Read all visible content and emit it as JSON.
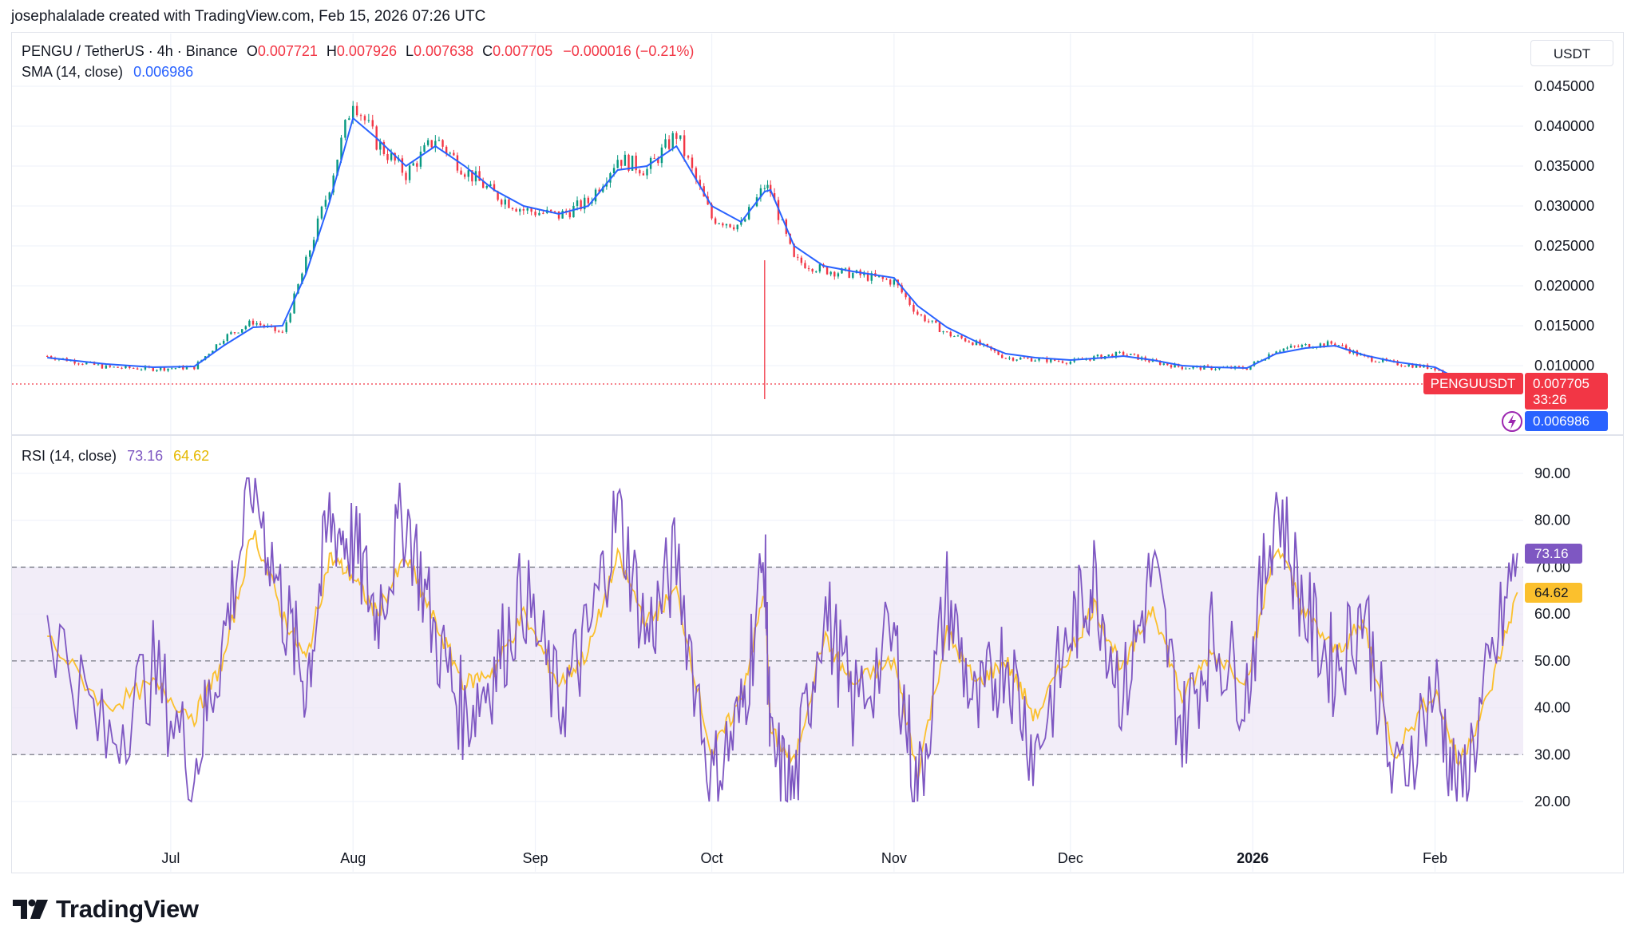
{
  "credit": "josephalalade created with TradingView.com, Feb 15, 2026 07:26 UTC",
  "legend": {
    "symbol": "PENGU / TetherUS · 4h · Binance",
    "o_label": "O",
    "o": "0.007721",
    "h_label": "H",
    "h": "0.007926",
    "l_label": "L",
    "l": "0.007638",
    "c_label": "C",
    "c": "0.007705",
    "change": "−0.000016 (−0.21%)",
    "sma_label": "SMA (14, close)",
    "sma_value": "0.006986",
    "rsi_label": "RSI (14, close)",
    "rsi_value": "73.16",
    "rsi_ma_value": "64.62"
  },
  "currency": "USDT",
  "price_axis_ticks": [
    "0.045000",
    "0.040000",
    "0.035000",
    "0.030000",
    "0.025000",
    "0.020000",
    "0.015000",
    "0.010000"
  ],
  "rsi_axis_ticks": [
    "90.00",
    "80.00",
    "70.00",
    "60.00",
    "50.00",
    "40.00",
    "30.00",
    "20.00"
  ],
  "time_axis_ticks": [
    "Jul",
    "Aug",
    "Sep",
    "Oct",
    "Nov",
    "Dec",
    "2026",
    "Feb"
  ],
  "price_badge": {
    "symbol": "PENGUUSDT",
    "price": "0.007705",
    "countdown": "33:26"
  },
  "sma_badge": "0.006986",
  "rsi_badge": "73.16",
  "rsi_ma_badge": "64.62",
  "brand": "TradingView",
  "colors": {
    "up": "#089981",
    "down": "#f23645",
    "sma": "#2962ff",
    "rsi": "#7e57c2",
    "rsi_ma": "#fbc02d",
    "rsi_band": "#ede7f6"
  },
  "chart_data": [
    {
      "type": "candlestick",
      "title": "PENGU / TetherUS · 4h · Binance",
      "ylim": [
        0.0055,
        0.0475
      ],
      "x": [
        "2025-06-10",
        "2025-06-20",
        "2025-06-28",
        "2025-07-05",
        "2025-07-10",
        "2025-07-15",
        "2025-07-20",
        "2025-07-24",
        "2025-07-28",
        "2025-08-01",
        "2025-08-05",
        "2025-08-10",
        "2025-08-15",
        "2025-08-20",
        "2025-08-25",
        "2025-08-30",
        "2025-09-05",
        "2025-09-10",
        "2025-09-15",
        "2025-09-20",
        "2025-09-25",
        "2025-10-01",
        "2025-10-06",
        "2025-10-10",
        "2025-10-11",
        "2025-10-15",
        "2025-10-20",
        "2025-10-25",
        "2025-11-01",
        "2025-11-05",
        "2025-11-10",
        "2025-11-15",
        "2025-11-20",
        "2025-11-25",
        "2025-12-01",
        "2025-12-05",
        "2025-12-10",
        "2025-12-15",
        "2025-12-20",
        "2025-12-25",
        "2025-12-31",
        "2026-01-05",
        "2026-01-10",
        "2026-01-15",
        "2026-01-20",
        "2026-01-25",
        "2026-02-01",
        "2026-02-05",
        "2026-02-10",
        "2026-02-15"
      ],
      "series": [
        {
          "name": "close",
          "values": [
            0.0112,
            0.0098,
            0.0096,
            0.0098,
            0.0135,
            0.0155,
            0.014,
            0.023,
            0.0325,
            0.0435,
            0.038,
            0.034,
            0.0385,
            0.0345,
            0.0315,
            0.0295,
            0.0288,
            0.0305,
            0.036,
            0.0345,
            0.039,
            0.0285,
            0.0275,
            0.0325,
            0.0318,
            0.0232,
            0.022,
            0.0215,
            0.0205,
            0.0165,
            0.014,
            0.0128,
            0.011,
            0.0108,
            0.0105,
            0.011,
            0.0115,
            0.0105,
            0.0098,
            0.0097,
            0.0097,
            0.012,
            0.0125,
            0.0128,
            0.011,
            0.0103,
            0.0097,
            0.008,
            0.0074,
            0.0077
          ]
        },
        {
          "name": "SMA (14, close)",
          "values": [
            0.011,
            0.0102,
            0.0098,
            0.0099,
            0.0125,
            0.0148,
            0.015,
            0.0215,
            0.0305,
            0.041,
            0.0385,
            0.035,
            0.0375,
            0.035,
            0.032,
            0.03,
            0.029,
            0.03,
            0.0345,
            0.035,
            0.0375,
            0.03,
            0.028,
            0.0318,
            0.032,
            0.025,
            0.0225,
            0.0218,
            0.021,
            0.0175,
            0.0148,
            0.013,
            0.0115,
            0.011,
            0.0107,
            0.0109,
            0.0112,
            0.0107,
            0.01,
            0.0098,
            0.0097,
            0.0115,
            0.0122,
            0.0125,
            0.0113,
            0.0105,
            0.0098,
            0.0083,
            0.0071,
            0.007
          ]
        }
      ],
      "lows": [
        {
          "x": "2025-10-10",
          "value": 0.0058
        }
      ]
    },
    {
      "type": "line",
      "title": "RSI (14, close)",
      "ylim": [
        15,
        95
      ],
      "levels": [
        70,
        50,
        30
      ],
      "x": [
        "2025-06-10",
        "2025-06-20",
        "2025-06-28",
        "2025-07-05",
        "2025-07-10",
        "2025-07-15",
        "2025-07-20",
        "2025-07-24",
        "2025-07-28",
        "2025-08-01",
        "2025-08-05",
        "2025-08-10",
        "2025-08-15",
        "2025-08-20",
        "2025-08-25",
        "2025-08-30",
        "2025-09-05",
        "2025-09-10",
        "2025-09-15",
        "2025-09-20",
        "2025-09-25",
        "2025-10-01",
        "2025-10-06",
        "2025-10-10",
        "2025-10-11",
        "2025-10-15",
        "2025-10-20",
        "2025-10-25",
        "2025-11-01",
        "2025-11-05",
        "2025-11-10",
        "2025-11-15",
        "2025-11-20",
        "2025-11-25",
        "2025-12-01",
        "2025-12-05",
        "2025-12-10",
        "2025-12-15",
        "2025-12-20",
        "2025-12-25",
        "2025-12-31",
        "2026-01-05",
        "2026-01-10",
        "2026-01-15",
        "2026-01-20",
        "2026-01-25",
        "2026-02-01",
        "2026-02-05",
        "2026-02-10",
        "2026-02-15"
      ],
      "series": [
        {
          "name": "RSI",
          "values": [
            60,
            32,
            48,
            27,
            55,
            89,
            62,
            45,
            80,
            75,
            60,
            82,
            55,
            38,
            48,
            65,
            40,
            55,
            82,
            55,
            72,
            24,
            38,
            72,
            30,
            22,
            62,
            40,
            55,
            21,
            64,
            38,
            52,
            30,
            56,
            68,
            42,
            70,
            35,
            55,
            44,
            85,
            60,
            48,
            62,
            22,
            45,
            20,
            45,
            73
          ]
        },
        {
          "name": "RSI MA",
          "values": [
            55,
            40,
            45,
            38,
            50,
            78,
            60,
            50,
            72,
            68,
            60,
            72,
            58,
            45,
            48,
            60,
            45,
            52,
            72,
            58,
            65,
            30,
            42,
            65,
            35,
            28,
            55,
            45,
            50,
            26,
            56,
            45,
            50,
            38,
            52,
            62,
            48,
            62,
            42,
            52,
            46,
            75,
            60,
            52,
            58,
            30,
            44,
            28,
            42,
            64.62
          ]
        }
      ]
    }
  ]
}
